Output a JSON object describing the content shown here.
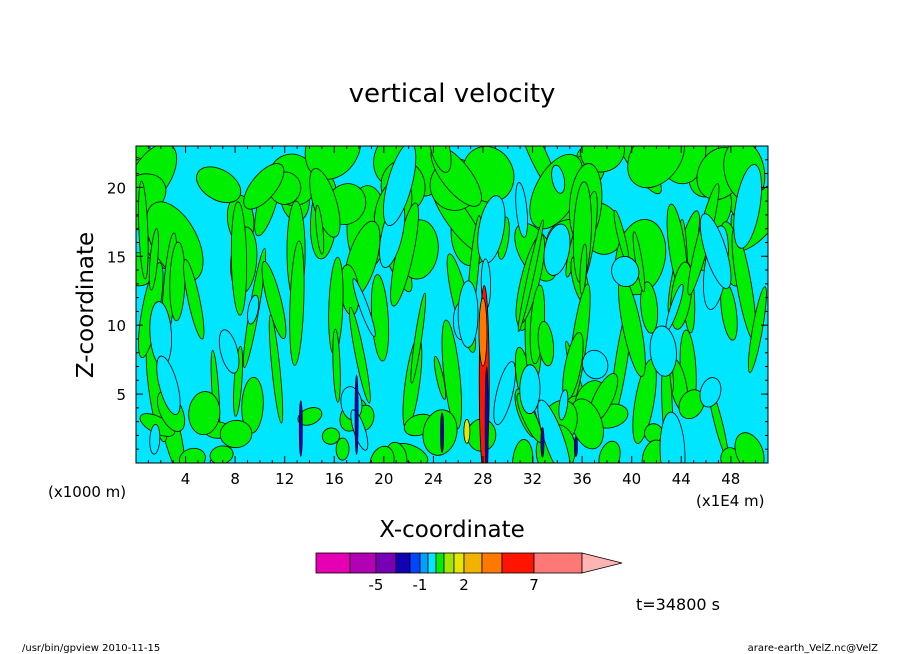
{
  "chart_data": {
    "type": "heatmap",
    "title": "vertical velocity",
    "xlabel": "X-coordinate",
    "ylabel": "Z-coordinate",
    "x_unit_left": "(x1000 m)",
    "x_unit_right": "(x1E4 m)",
    "xlim": [
      0,
      51
    ],
    "ylim": [
      0,
      23
    ],
    "x_ticks": [
      4,
      8,
      12,
      16,
      20,
      24,
      28,
      32,
      36,
      40,
      44,
      48
    ],
    "y_ticks": [
      5,
      10,
      15,
      20
    ],
    "field_colors": {
      "negative": "#00e6ff",
      "positive": "#00ee00"
    },
    "colorbar": {
      "levels": [
        -7,
        -5,
        -3,
        -2,
        -1,
        -0.5,
        0,
        0.5,
        1,
        2,
        3,
        5,
        7,
        10
      ],
      "colors": [
        "#e600b4",
        "#b400b4",
        "#7800b4",
        "#1400b4",
        "#0046ff",
        "#00a0ff",
        "#00e6ff",
        "#00ee00",
        "#a0e600",
        "#e6e600",
        "#f0b400",
        "#ff7800",
        "#ff1400",
        "#ff7878",
        "#ffb4b4"
      ],
      "tick_labels": [
        {
          "label": "-5",
          "level": -5
        },
        {
          "label": "-1",
          "level": -1
        },
        {
          "label": "2",
          "level": 2
        },
        {
          "label": "7",
          "level": 7
        }
      ]
    },
    "time_label": "t=34800 s"
  },
  "footer": {
    "left": "/usr/bin/gpview   2010-11-15",
    "right": "arare-earth_VelZ.nc@VelZ"
  }
}
